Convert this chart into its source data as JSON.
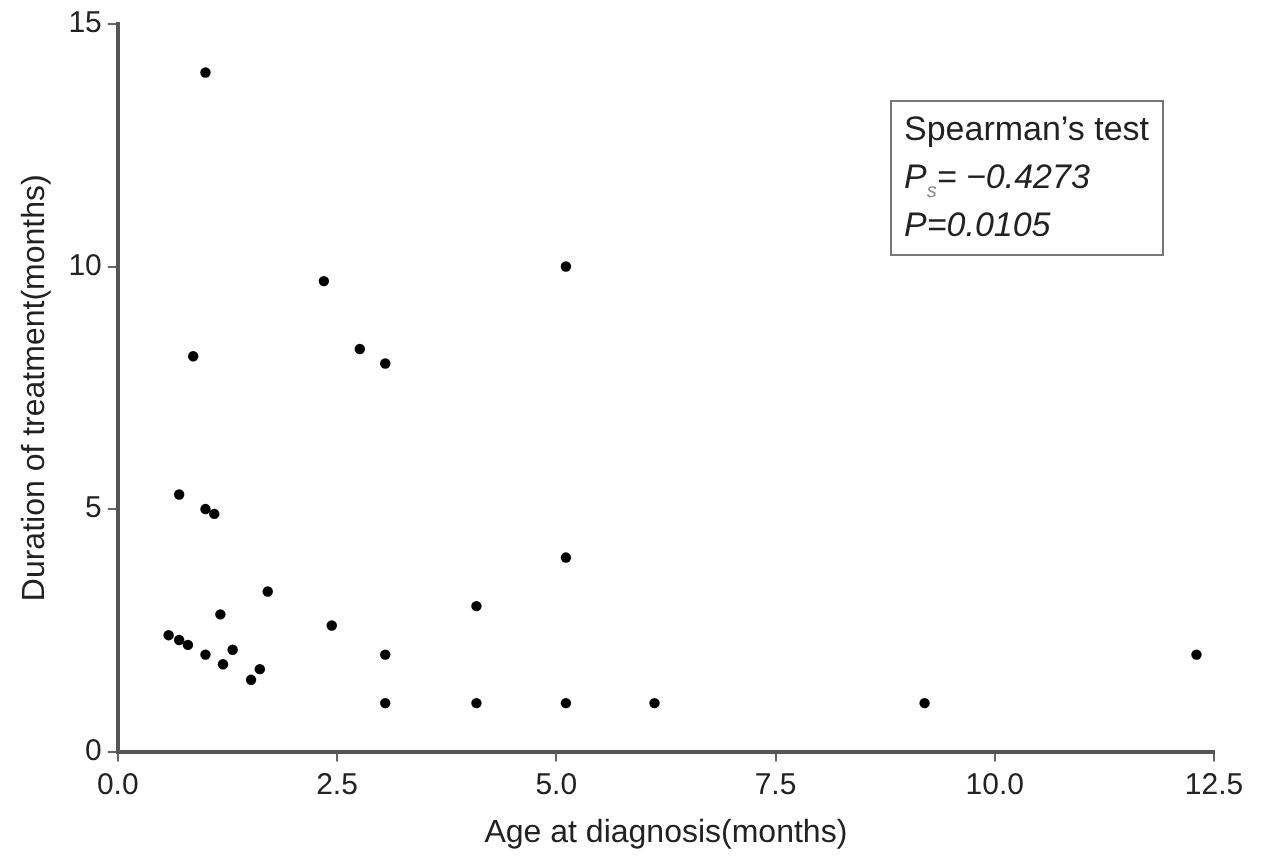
{
  "chart_data": {
    "type": "scatter",
    "xlabel": "Age at diagnosis(months)",
    "ylabel": "Duration of treatment(months)",
    "annotations": [
      "Spearman’s test",
      "P$_{s}$= −0.4273",
      "P=0.0105"
    ],
    "x": [
      1.0,
      2.35,
      5.11,
      0.86,
      2.76,
      3.05,
      0.7,
      1.0,
      1.1,
      5.11,
      1.71,
      4.09,
      1.17,
      2.44,
      0.58,
      0.7,
      0.8,
      1.0,
      1.31,
      1.2,
      1.62,
      1.52,
      3.05,
      3.05,
      4.09,
      5.11,
      6.12,
      9.2,
      12.3
    ],
    "values": [
      14.0,
      9.7,
      10.0,
      8.15,
      8.3,
      8.0,
      5.3,
      5.0,
      4.9,
      4.0,
      3.3,
      3.0,
      2.83,
      2.6,
      2.4,
      2.3,
      2.2,
      2.0,
      2.1,
      1.8,
      1.7,
      1.48,
      2.0,
      1.0,
      1.0,
      1.0,
      1.0,
      1.0,
      2.0
    ],
    "color": "#000000",
    "marker": "circle",
    "xlim": [
      0,
      12.5
    ],
    "xticks": [
      {
        "value": 0,
        "label": "0.0"
      },
      {
        "value": 2.5,
        "label": "2.5"
      },
      {
        "value": 5,
        "label": "5.0"
      },
      {
        "value": 7.5,
        "label": "7.5"
      },
      {
        "value": 10,
        "label": "10.0"
      },
      {
        "value": 12.5,
        "label": "12.5"
      }
    ],
    "ylim": [
      0,
      15
    ],
    "yticks": [
      0,
      5,
      10,
      15
    ],
    "grid": false,
    "legend": false
  }
}
